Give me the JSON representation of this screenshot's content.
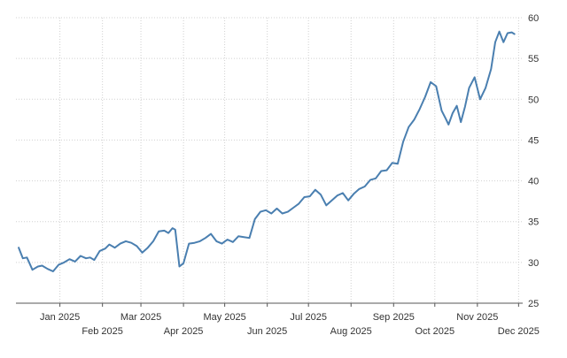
{
  "chart_data": {
    "type": "line",
    "title": "",
    "xlabel": "",
    "ylabel": "",
    "grid": true,
    "ylim": [
      25,
      60
    ],
    "yticks": [
      25,
      30,
      35,
      40,
      45,
      50,
      55,
      60
    ],
    "xlim": [
      "2024-12-14",
      "2025-12-18"
    ],
    "xticks": [
      {
        "date": "2025-01-15",
        "label": "Jan 2025",
        "row": 1
      },
      {
        "date": "2025-02-15",
        "label": "Feb 2025",
        "row": 2
      },
      {
        "date": "2025-03-15",
        "label": "Mar 2025",
        "row": 1
      },
      {
        "date": "2025-04-15",
        "label": "Apr 2025",
        "row": 2
      },
      {
        "date": "2025-05-15",
        "label": "May 2025",
        "row": 1
      },
      {
        "date": "2025-06-15",
        "label": "Jun 2025",
        "row": 2
      },
      {
        "date": "2025-07-15",
        "label": "Jul 2025",
        "row": 1
      },
      {
        "date": "2025-08-15",
        "label": "Aug 2025",
        "row": 2
      },
      {
        "date": "2025-09-15",
        "label": "Sep 2025",
        "row": 1
      },
      {
        "date": "2025-10-15",
        "label": "Oct 2025",
        "row": 2
      },
      {
        "date": "2025-11-15",
        "label": "Nov 2025",
        "row": 1
      },
      {
        "date": "2025-12-15",
        "label": "Dec 2025",
        "row": 2
      }
    ],
    "line_color": "#4a7fb0",
    "series": [
      {
        "x": [
          "2024-12-16",
          "2024-12-19",
          "2024-12-22",
          "2024-12-26",
          "2024-12-30",
          "2025-01-02",
          "2025-01-06",
          "2025-01-10",
          "2025-01-14",
          "2025-01-18",
          "2025-01-22",
          "2025-01-26",
          "2025-01-30",
          "2025-02-03",
          "2025-02-06",
          "2025-02-09",
          "2025-02-13",
          "2025-02-17",
          "2025-02-20",
          "2025-02-24",
          "2025-02-28",
          "2025-03-04",
          "2025-03-08",
          "2025-03-12",
          "2025-03-16",
          "2025-03-20",
          "2025-03-24",
          "2025-03-28",
          "2025-04-01",
          "2025-04-04",
          "2025-04-07",
          "2025-04-09",
          "2025-04-12",
          "2025-04-15",
          "2025-04-19",
          "2025-04-23",
          "2025-04-27",
          "2025-05-01",
          "2025-05-05",
          "2025-05-09",
          "2025-05-13",
          "2025-05-17",
          "2025-05-21",
          "2025-05-25",
          "2025-05-29",
          "2025-06-02",
          "2025-06-06",
          "2025-06-10",
          "2025-06-14",
          "2025-06-18",
          "2025-06-22",
          "2025-06-26",
          "2025-06-30",
          "2025-07-04",
          "2025-07-08",
          "2025-07-12",
          "2025-07-16",
          "2025-07-20",
          "2025-07-24",
          "2025-07-28",
          "2025-08-01",
          "2025-08-05",
          "2025-08-09",
          "2025-08-13",
          "2025-08-17",
          "2025-08-21",
          "2025-08-25",
          "2025-08-29",
          "2025-09-02",
          "2025-09-06",
          "2025-09-10",
          "2025-09-14",
          "2025-09-18",
          "2025-09-22",
          "2025-09-26",
          "2025-09-30",
          "2025-10-04",
          "2025-10-08",
          "2025-10-12",
          "2025-10-16",
          "2025-10-20",
          "2025-10-23",
          "2025-10-25",
          "2025-10-28",
          "2025-10-31",
          "2025-11-03",
          "2025-11-06",
          "2025-11-09",
          "2025-11-13",
          "2025-11-17",
          "2025-11-21",
          "2025-11-25",
          "2025-11-28",
          "2025-12-01",
          "2025-12-04",
          "2025-12-07",
          "2025-12-10",
          "2025-12-12"
        ],
        "y": [
          31.8,
          30.5,
          30.6,
          29.1,
          29.5,
          29.6,
          29.2,
          28.9,
          29.7,
          30.0,
          30.4,
          30.1,
          30.8,
          30.5,
          30.6,
          30.3,
          31.4,
          31.7,
          32.2,
          31.8,
          32.3,
          32.6,
          32.4,
          32.0,
          31.2,
          31.8,
          32.6,
          33.8,
          33.9,
          33.6,
          34.2,
          34.0,
          29.5,
          29.9,
          32.3,
          32.4,
          32.6,
          33.0,
          33.5,
          32.6,
          32.3,
          32.8,
          32.5,
          33.2,
          33.1,
          33.0,
          35.3,
          36.2,
          36.4,
          36.0,
          36.6,
          36.0,
          36.2,
          36.7,
          37.2,
          38.0,
          38.1,
          38.9,
          38.3,
          37.0,
          37.6,
          38.2,
          38.5,
          37.6,
          38.4,
          39.0,
          39.3,
          40.1,
          40.3,
          41.2,
          41.3,
          42.2,
          42.1,
          44.8,
          46.6,
          47.5,
          48.8,
          50.3,
          52.1,
          51.6,
          48.6,
          47.6,
          46.9,
          48.3,
          49.2,
          47.2,
          49.1,
          51.4,
          52.7,
          50.0,
          51.4,
          53.7,
          57.0,
          58.3,
          57.0,
          58.1,
          58.2,
          58.0
        ]
      }
    ]
  }
}
